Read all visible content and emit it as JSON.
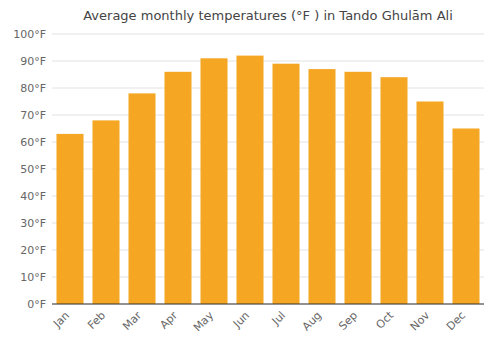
{
  "chart_data": {
    "type": "bar",
    "title": "Average monthly temperatures (°F ) in Tando Ghulām Ali",
    "categories": [
      "Jan",
      "Feb",
      "Mar",
      "Apr",
      "May",
      "Jun",
      "Jul",
      "Aug",
      "Sep",
      "Oct",
      "Nov",
      "Dec"
    ],
    "values": [
      63,
      68,
      78,
      86,
      91,
      92,
      89,
      87,
      86,
      84,
      75,
      65
    ],
    "color": "#F5A623",
    "ylim": [
      0,
      100
    ],
    "yticks": [
      {
        "value": 0,
        "label": "0°F"
      },
      {
        "value": 10,
        "label": "10°F"
      },
      {
        "value": 20,
        "label": "20°F"
      },
      {
        "value": 30,
        "label": "30°F"
      },
      {
        "value": 40,
        "label": "40°F"
      },
      {
        "value": 50,
        "label": "50°F"
      },
      {
        "value": 60,
        "label": "60°F"
      },
      {
        "value": 70,
        "label": "70°F"
      },
      {
        "value": 80,
        "label": "80°F"
      },
      {
        "value": 90,
        "label": "90°F"
      },
      {
        "value": 100,
        "label": "100°F"
      }
    ],
    "grid": true
  }
}
